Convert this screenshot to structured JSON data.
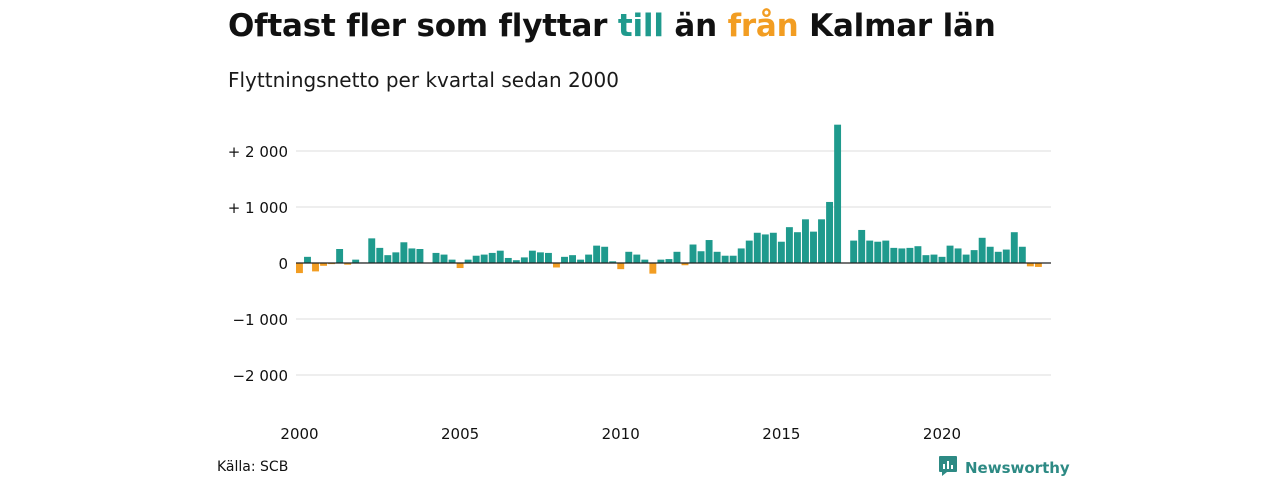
{
  "colors": {
    "positive": "#1f9a8d",
    "negative": "#f29d22",
    "brand": "#2d8a84"
  },
  "title": {
    "parts": [
      {
        "text": "Oftast fler som flyttar ",
        "color": "#111111"
      },
      {
        "text": "till",
        "color": "#1f9a8d"
      },
      {
        "text": " än ",
        "color": "#111111"
      },
      {
        "text": "från",
        "color": "#f29d22"
      },
      {
        "text": " Kalmar län",
        "color": "#111111"
      }
    ]
  },
  "subtitle": "Flyttningsnetto per kvartal sedan 2000",
  "source": "Källa: SCB",
  "brand": {
    "name": "Newsworthy",
    "icon": "newsworthy-logo-icon"
  },
  "chart_data": {
    "type": "bar",
    "title": "Oftast fler som flyttar till än från Kalmar län",
    "subtitle": "Flyttningsnetto per kvartal sedan 2000",
    "xlabel": "",
    "ylabel": "",
    "ylim": [
      -2000,
      2000
    ],
    "yticks": [
      2000,
      1000,
      0,
      -1000,
      -2000
    ],
    "ytick_labels": [
      "+ 2 000",
      "+ 1 000",
      "0",
      "−1 000",
      "−2 000"
    ],
    "xticks": [
      "2000",
      "2005",
      "2010",
      "2015",
      "2020"
    ],
    "grid": true,
    "legend": "none",
    "x_start": "2000 Q1",
    "x_end": "2023 Q2",
    "categories": [
      "2000 Q1",
      "2000 Q2",
      "2000 Q3",
      "2000 Q4",
      "2001 Q1",
      "2001 Q2",
      "2001 Q3",
      "2001 Q4",
      "2002 Q1",
      "2002 Q2",
      "2002 Q3",
      "2002 Q4",
      "2003 Q1",
      "2003 Q2",
      "2003 Q3",
      "2003 Q4",
      "2004 Q1",
      "2004 Q2",
      "2004 Q3",
      "2004 Q4",
      "2005 Q1",
      "2005 Q2",
      "2005 Q3",
      "2005 Q4",
      "2006 Q1",
      "2006 Q2",
      "2006 Q3",
      "2006 Q4",
      "2007 Q1",
      "2007 Q2",
      "2007 Q3",
      "2007 Q4",
      "2008 Q1",
      "2008 Q2",
      "2008 Q3",
      "2008 Q4",
      "2009 Q1",
      "2009 Q2",
      "2009 Q3",
      "2009 Q4",
      "2010 Q1",
      "2010 Q2",
      "2010 Q3",
      "2010 Q4",
      "2011 Q1",
      "2011 Q2",
      "2011 Q3",
      "2011 Q4",
      "2012 Q1",
      "2012 Q2",
      "2012 Q3",
      "2012 Q4",
      "2013 Q1",
      "2013 Q2",
      "2013 Q3",
      "2013 Q4",
      "2014 Q1",
      "2014 Q2",
      "2014 Q3",
      "2014 Q4",
      "2015 Q1",
      "2015 Q2",
      "2015 Q3",
      "2015 Q4",
      "2016 Q1",
      "2016 Q2",
      "2016 Q3",
      "2016 Q4",
      "2017 Q1",
      "2017 Q2",
      "2017 Q3",
      "2017 Q4",
      "2018 Q1",
      "2018 Q2",
      "2018 Q3",
      "2018 Q4",
      "2019 Q1",
      "2019 Q2",
      "2019 Q3",
      "2019 Q4",
      "2020 Q1",
      "2020 Q2",
      "2020 Q3",
      "2020 Q4",
      "2021 Q1",
      "2021 Q2",
      "2021 Q3",
      "2021 Q4",
      "2022 Q1",
      "2022 Q2",
      "2022 Q3",
      "2022 Q4",
      "2023 Q1",
      "2023 Q2"
    ],
    "values": [
      -180,
      110,
      -150,
      -50,
      -20,
      250,
      -30,
      60,
      10,
      440,
      270,
      140,
      190,
      370,
      260,
      250,
      0,
      180,
      150,
      60,
      -90,
      60,
      130,
      150,
      180,
      220,
      90,
      50,
      100,
      220,
      190,
      180,
      -80,
      110,
      140,
      60,
      150,
      310,
      290,
      30,
      -110,
      200,
      150,
      60,
      -190,
      60,
      70,
      200,
      -40,
      330,
      210,
      410,
      200,
      130,
      130,
      260,
      400,
      540,
      510,
      540,
      380,
      640,
      550,
      780,
      560,
      780,
      1090,
      2470,
      0,
      400,
      590,
      400,
      380,
      400,
      270,
      260,
      270,
      300,
      140,
      150,
      110,
      310,
      260,
      150,
      230,
      450,
      290,
      200,
      240,
      550,
      290,
      -60,
      -70,
      0
    ]
  }
}
